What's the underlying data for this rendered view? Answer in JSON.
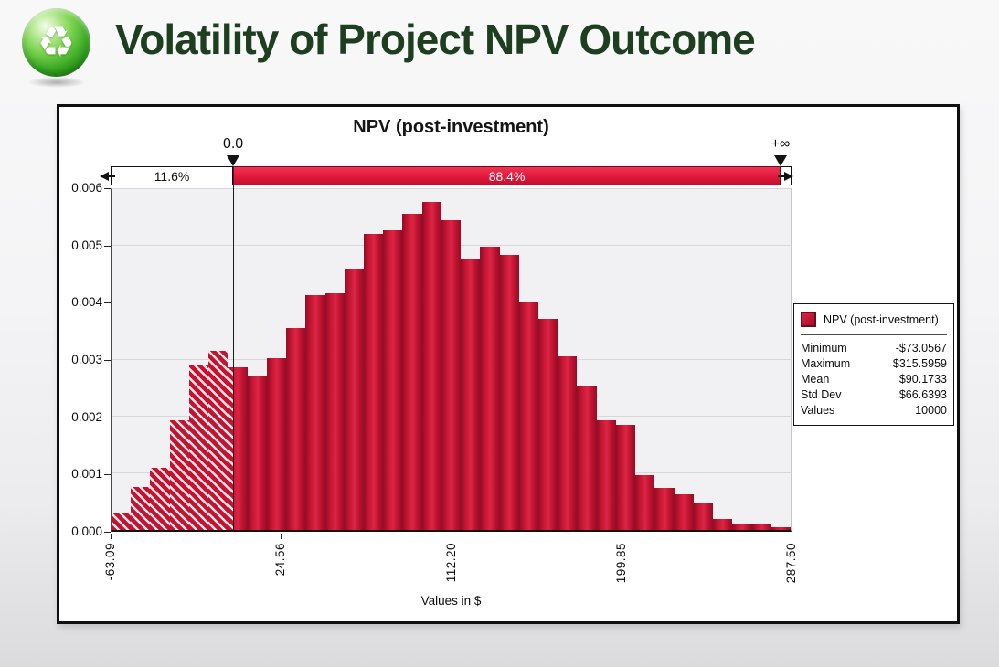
{
  "header": {
    "title": "Volatility of Project NPV Outcome",
    "icon": "recycle-icon",
    "icon_glyph": "♻"
  },
  "colors": {
    "title_green": "#1e3e20",
    "bar_red_bright": "#dc2544",
    "bar_red": "#c81634",
    "bar_red_dark": "#930d26",
    "delimiter_red": "#e61c3f",
    "hatch_stripe": "#f3e3e6",
    "plot_bg": "#f1f1f3",
    "grid": "#d7d7da"
  },
  "chart_data": {
    "type": "bar",
    "title": "NPV (post-investment)",
    "xlabel": "Values in $",
    "x_range": [
      -63.09,
      287.5
    ],
    "y_range": [
      0,
      0.006
    ],
    "x_ticks": [
      "-63.09",
      "24.56",
      "112.20",
      "199.85",
      "287.50"
    ],
    "y_ticks": [
      "0.000",
      "0.001",
      "0.002",
      "0.003",
      "0.004",
      "0.005",
      "0.006"
    ],
    "bin_width": 10.02,
    "values": [
      0.0003,
      0.00075,
      0.0011,
      0.00193,
      0.0029,
      0.00315,
      0.00287,
      0.00272,
      0.00303,
      0.00356,
      0.00414,
      0.00416,
      0.0046,
      0.00521,
      0.00527,
      0.00556,
      0.00578,
      0.00545,
      0.00478,
      0.00499,
      0.00485,
      0.00402,
      0.00371,
      0.00305,
      0.00252,
      0.00193,
      0.00185,
      0.00097,
      0.00074,
      0.00062,
      0.00049,
      0.0002,
      0.00012,
      9e-05,
      5e-05
    ],
    "hatch_below_x": 0,
    "delimiters": {
      "left_marker_label": "0.0",
      "right_marker_label": "+∞",
      "left_region_pct": "11.6%",
      "right_region_pct": "88.4%"
    },
    "legend": {
      "series_label": "NPV (post-investment)",
      "stats": [
        {
          "label": "Minimum",
          "value": "-$73.0567"
        },
        {
          "label": "Maximum",
          "value": "$315.5959"
        },
        {
          "label": "Mean",
          "value": "$90.1733"
        },
        {
          "label": "Std Dev",
          "value": "$66.6393"
        },
        {
          "label": "Values",
          "value": "10000"
        }
      ]
    }
  }
}
